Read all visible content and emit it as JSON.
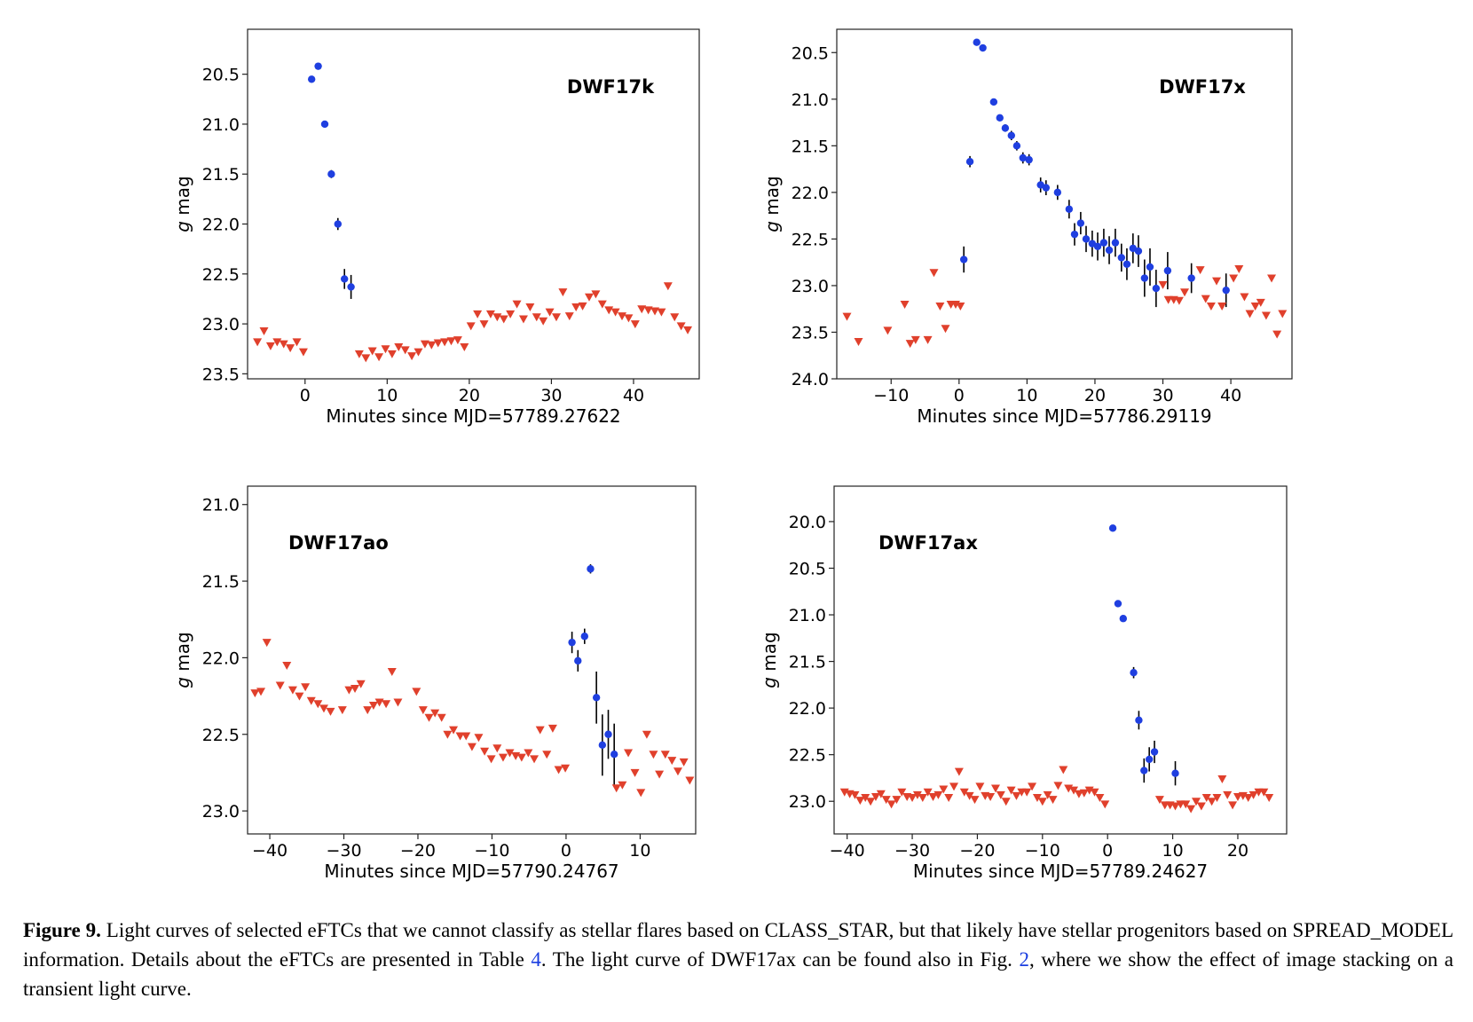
{
  "figure": {
    "caption": {
      "label": "Figure 9.",
      "text_1": " Light curves of selected eFTCs that we cannot classify as stellar flares based on CLASS_STAR, but that likely have stellar progenitors based on SPREAD_MODEL information. Details about the eFTCs are presented in Table ",
      "ref_table": "4",
      "text_2": ". The light curve of DWF17ax can be found also in Fig. ",
      "ref_fig": "2",
      "text_3": ", where we show the effect of image stacking on a transient light curve."
    }
  },
  "colors": {
    "detection": "#1f3fe0",
    "limit": "#e0402c",
    "errorbar": "#000000"
  },
  "chart_data": [
    {
      "type": "scatter",
      "title": "DWF17k",
      "xlabel": "Minutes since MJD=57789.27622",
      "ylabel": "g mag",
      "xlim": [
        -7,
        48
      ],
      "ylim": [
        23.55,
        20.05
      ],
      "y_inverted": true,
      "xticks": [
        0,
        10,
        20,
        30,
        40
      ],
      "yticks": [
        20.5,
        21.0,
        21.5,
        22.0,
        22.5,
        23.0,
        23.5
      ],
      "series": [
        {
          "kind": "detection",
          "x": [
            0.8,
            1.6,
            2.4,
            3.2,
            4.0,
            4.8,
            5.6
          ],
          "y": [
            20.55,
            20.42,
            21.0,
            21.5,
            22.0,
            22.55,
            22.63
          ],
          "err": [
            0.02,
            0.02,
            0.02,
            0.04,
            0.06,
            0.1,
            0.12
          ]
        },
        {
          "kind": "limit",
          "x": [
            -5.8,
            -5.0,
            -4.2,
            -3.4,
            -2.6,
            -1.8,
            -1.0,
            -0.2,
            6.6,
            7.4,
            8.2,
            9.0,
            9.8,
            10.6,
            11.4,
            12.2,
            13.0,
            13.8,
            14.6,
            15.4,
            16.2,
            17.0,
            17.8,
            18.6,
            19.4,
            20.2,
            21.0,
            21.8,
            22.6,
            23.4,
            24.2,
            25.0,
            25.8,
            26.6,
            27.4,
            28.2,
            29.0,
            29.8,
            30.6,
            31.4,
            32.2,
            33.0,
            33.8,
            34.6,
            35.4,
            36.2,
            37.0,
            37.8,
            38.6,
            39.4,
            40.2,
            41.0,
            41.8,
            42.6,
            43.4,
            44.2,
            45.0,
            45.8,
            46.6
          ],
          "y": [
            23.18,
            23.07,
            23.22,
            23.18,
            23.2,
            23.24,
            23.18,
            23.28,
            23.3,
            23.34,
            23.27,
            23.33,
            23.25,
            23.3,
            23.23,
            23.26,
            23.32,
            23.28,
            23.2,
            23.21,
            23.19,
            23.18,
            23.17,
            23.16,
            23.23,
            23.02,
            22.9,
            23.0,
            22.9,
            22.93,
            22.95,
            22.9,
            22.8,
            22.95,
            22.83,
            22.93,
            22.97,
            22.88,
            22.93,
            22.68,
            22.92,
            22.83,
            22.82,
            22.73,
            22.7,
            22.8,
            22.86,
            22.88,
            22.92,
            22.94,
            23.0,
            22.85,
            22.86,
            22.87,
            22.88,
            22.62,
            22.93,
            23.02,
            23.06
          ]
        }
      ]
    },
    {
      "type": "scatter",
      "title": "DWF17x",
      "xlabel": "Minutes since MJD=57786.29119",
      "ylabel": "g mag",
      "xlim": [
        -18,
        49
      ],
      "ylim": [
        24.0,
        20.25
      ],
      "y_inverted": true,
      "xticks": [
        -10,
        0,
        10,
        20,
        30,
        40
      ],
      "yticks": [
        20.5,
        21.0,
        21.5,
        22.0,
        22.5,
        23.0,
        23.5,
        24.0
      ],
      "series": [
        {
          "kind": "detection",
          "x": [
            0.7,
            1.6,
            2.6,
            3.5,
            5.1,
            6.0,
            6.8,
            7.7,
            8.5,
            9.4,
            10.3,
            12.0,
            12.8,
            14.5,
            16.2,
            17.0,
            17.9,
            18.7,
            19.6,
            20.4,
            21.3,
            22.1,
            23.0,
            23.9,
            24.7,
            25.6,
            26.4,
            27.3,
            28.1,
            29.0,
            30.7,
            34.2,
            39.3
          ],
          "y": [
            22.72,
            21.67,
            20.39,
            20.45,
            21.03,
            21.2,
            21.31,
            21.39,
            21.5,
            21.63,
            21.65,
            21.92,
            21.95,
            22.0,
            22.18,
            22.45,
            22.33,
            22.5,
            22.55,
            22.58,
            22.54,
            22.62,
            22.54,
            22.7,
            22.77,
            22.6,
            22.63,
            22.92,
            22.8,
            23.03,
            22.84,
            22.92,
            23.05
          ],
          "err": [
            0.14,
            0.06,
            0.02,
            0.02,
            0.03,
            0.03,
            0.04,
            0.05,
            0.05,
            0.06,
            0.06,
            0.08,
            0.08,
            0.08,
            0.1,
            0.12,
            0.12,
            0.14,
            0.14,
            0.15,
            0.15,
            0.15,
            0.15,
            0.15,
            0.17,
            0.16,
            0.17,
            0.2,
            0.2,
            0.2,
            0.2,
            0.16,
            0.18
          ]
        },
        {
          "kind": "limit",
          "x": [
            -16.5,
            -14.8,
            -10.5,
            -8.0,
            -7.2,
            -6.4,
            -4.6,
            -3.7,
            -2.8,
            -2.0,
            -1.2,
            -0.5,
            0.2,
            30.0,
            30.8,
            31.6,
            32.4,
            33.2,
            35.5,
            36.3,
            37.1,
            37.9,
            38.7,
            40.4,
            41.2,
            42.0,
            42.8,
            43.6,
            44.4,
            45.2,
            46.0,
            46.8,
            47.6
          ],
          "y": [
            23.33,
            23.6,
            23.48,
            23.2,
            23.62,
            23.58,
            23.58,
            22.86,
            23.22,
            23.46,
            23.2,
            23.2,
            23.22,
            22.99,
            23.15,
            23.15,
            23.16,
            23.07,
            22.83,
            23.14,
            23.22,
            22.95,
            23.22,
            22.92,
            22.82,
            23.12,
            23.3,
            23.22,
            23.18,
            23.32,
            22.92,
            23.52,
            23.3
          ]
        }
      ]
    },
    {
      "type": "scatter",
      "title": "DWF17ao",
      "xlabel": "Minutes since MJD=57790.24767",
      "ylabel": "g mag",
      "xlim": [
        -43,
        17.5
      ],
      "ylim": [
        23.15,
        20.88
      ],
      "y_inverted": true,
      "xticks": [
        -40,
        -30,
        -20,
        -10,
        0,
        10
      ],
      "yticks": [
        21.0,
        21.5,
        22.0,
        22.5,
        23.0
      ],
      "series": [
        {
          "kind": "detection",
          "x": [
            0.8,
            1.6,
            2.5,
            3.3,
            4.1,
            4.9,
            5.7,
            6.5
          ],
          "y": [
            21.9,
            22.02,
            21.86,
            21.42,
            22.26,
            22.57,
            22.5,
            22.63
          ],
          "err": [
            0.07,
            0.07,
            0.05,
            0.03,
            0.17,
            0.2,
            0.16,
            0.2
          ]
        },
        {
          "kind": "limit",
          "x": [
            -42.0,
            -41.2,
            -40.4,
            -38.6,
            -37.7,
            -36.9,
            -36.0,
            -35.2,
            -34.4,
            -33.5,
            -32.7,
            -31.8,
            -30.2,
            -29.3,
            -28.5,
            -27.7,
            -26.8,
            -26.0,
            -25.2,
            -24.3,
            -23.5,
            -22.7,
            -20.2,
            -19.3,
            -18.5,
            -17.7,
            -16.8,
            -16.0,
            -15.2,
            -14.3,
            -13.5,
            -12.7,
            -11.8,
            -11.0,
            -10.1,
            -9.3,
            -8.5,
            -7.6,
            -6.8,
            -6.0,
            -5.1,
            -4.3,
            -3.5,
            -2.6,
            -1.8,
            -1.0,
            -0.1,
            6.8,
            7.6,
            8.4,
            9.3,
            10.1,
            10.9,
            11.8,
            12.6,
            13.4,
            14.3,
            15.1,
            15.9,
            16.7
          ],
          "y": [
            22.23,
            22.22,
            21.9,
            22.18,
            22.05,
            22.21,
            22.25,
            22.19,
            22.28,
            22.3,
            22.33,
            22.35,
            22.34,
            22.21,
            22.2,
            22.17,
            22.34,
            22.31,
            22.29,
            22.3,
            22.09,
            22.29,
            22.22,
            22.34,
            22.39,
            22.36,
            22.39,
            22.5,
            22.47,
            22.51,
            22.51,
            22.58,
            22.52,
            22.61,
            22.66,
            22.59,
            22.65,
            22.62,
            22.64,
            22.65,
            22.62,
            22.66,
            22.47,
            22.63,
            22.46,
            22.73,
            22.72,
            22.85,
            22.83,
            22.62,
            22.75,
            22.88,
            22.5,
            22.63,
            22.76,
            22.63,
            22.67,
            22.74,
            22.68,
            22.8
          ]
        }
      ]
    },
    {
      "type": "scatter",
      "title": "DWF17ax",
      "xlabel": "Minutes since MJD=57789.24627",
      "ylabel": "g mag",
      "xlim": [
        -42,
        27.5
      ],
      "ylim": [
        23.35,
        19.62
      ],
      "y_inverted": true,
      "xticks": [
        -40,
        -30,
        -20,
        -10,
        0,
        10,
        20
      ],
      "yticks": [
        20.0,
        20.5,
        21.0,
        21.5,
        22.0,
        22.5,
        23.0
      ],
      "series": [
        {
          "kind": "detection",
          "x": [
            0.8,
            1.6,
            2.4,
            4.0,
            4.8,
            5.6,
            6.4,
            7.2,
            10.4
          ],
          "y": [
            20.07,
            20.88,
            21.04,
            21.62,
            22.13,
            22.67,
            22.55,
            22.47,
            22.7
          ],
          "err": [
            0.02,
            0.03,
            0.03,
            0.06,
            0.1,
            0.13,
            0.13,
            0.12,
            0.13
          ]
        },
        {
          "kind": "limit",
          "x": [
            -40.4,
            -39.6,
            -38.8,
            -38.0,
            -37.2,
            -36.4,
            -35.6,
            -34.8,
            -34.0,
            -33.2,
            -32.4,
            -31.6,
            -30.8,
            -30.0,
            -29.2,
            -28.4,
            -27.6,
            -26.8,
            -26.0,
            -25.2,
            -24.4,
            -23.6,
            -22.8,
            -22.0,
            -21.2,
            -20.4,
            -19.6,
            -18.8,
            -18.0,
            -17.2,
            -16.4,
            -15.6,
            -14.8,
            -14.0,
            -13.2,
            -12.4,
            -11.6,
            -10.8,
            -10.0,
            -9.2,
            -8.4,
            -7.6,
            -6.8,
            -6.0,
            -5.2,
            -4.4,
            -3.6,
            -2.8,
            -2.0,
            -1.2,
            -0.4,
            8.0,
            8.8,
            9.6,
            10.4,
            11.2,
            12.0,
            12.8,
            13.6,
            14.4,
            15.2,
            16.0,
            16.8,
            17.6,
            18.4,
            19.2,
            20.0,
            20.8,
            21.6,
            22.4,
            23.2,
            24.0,
            24.8
          ],
          "y": [
            22.9,
            22.92,
            22.93,
            22.99,
            22.96,
            23.0,
            22.95,
            22.92,
            22.98,
            23.03,
            22.98,
            22.9,
            22.95,
            22.96,
            22.93,
            22.96,
            22.9,
            22.95,
            22.93,
            22.87,
            22.96,
            22.84,
            22.68,
            22.9,
            22.94,
            22.98,
            22.84,
            22.94,
            22.95,
            22.86,
            22.93,
            23.0,
            22.88,
            22.94,
            22.9,
            22.9,
            22.84,
            22.96,
            23.0,
            22.93,
            22.98,
            22.83,
            22.66,
            22.86,
            22.88,
            22.92,
            22.91,
            22.88,
            22.9,
            22.96,
            23.03,
            22.98,
            23.04,
            23.04,
            23.05,
            23.03,
            23.03,
            23.08,
            23.0,
            23.05,
            22.96,
            23.0,
            22.96,
            22.76,
            22.93,
            23.04,
            22.95,
            22.94,
            22.96,
            22.93,
            22.9,
            22.9,
            22.96
          ]
        }
      ]
    }
  ]
}
